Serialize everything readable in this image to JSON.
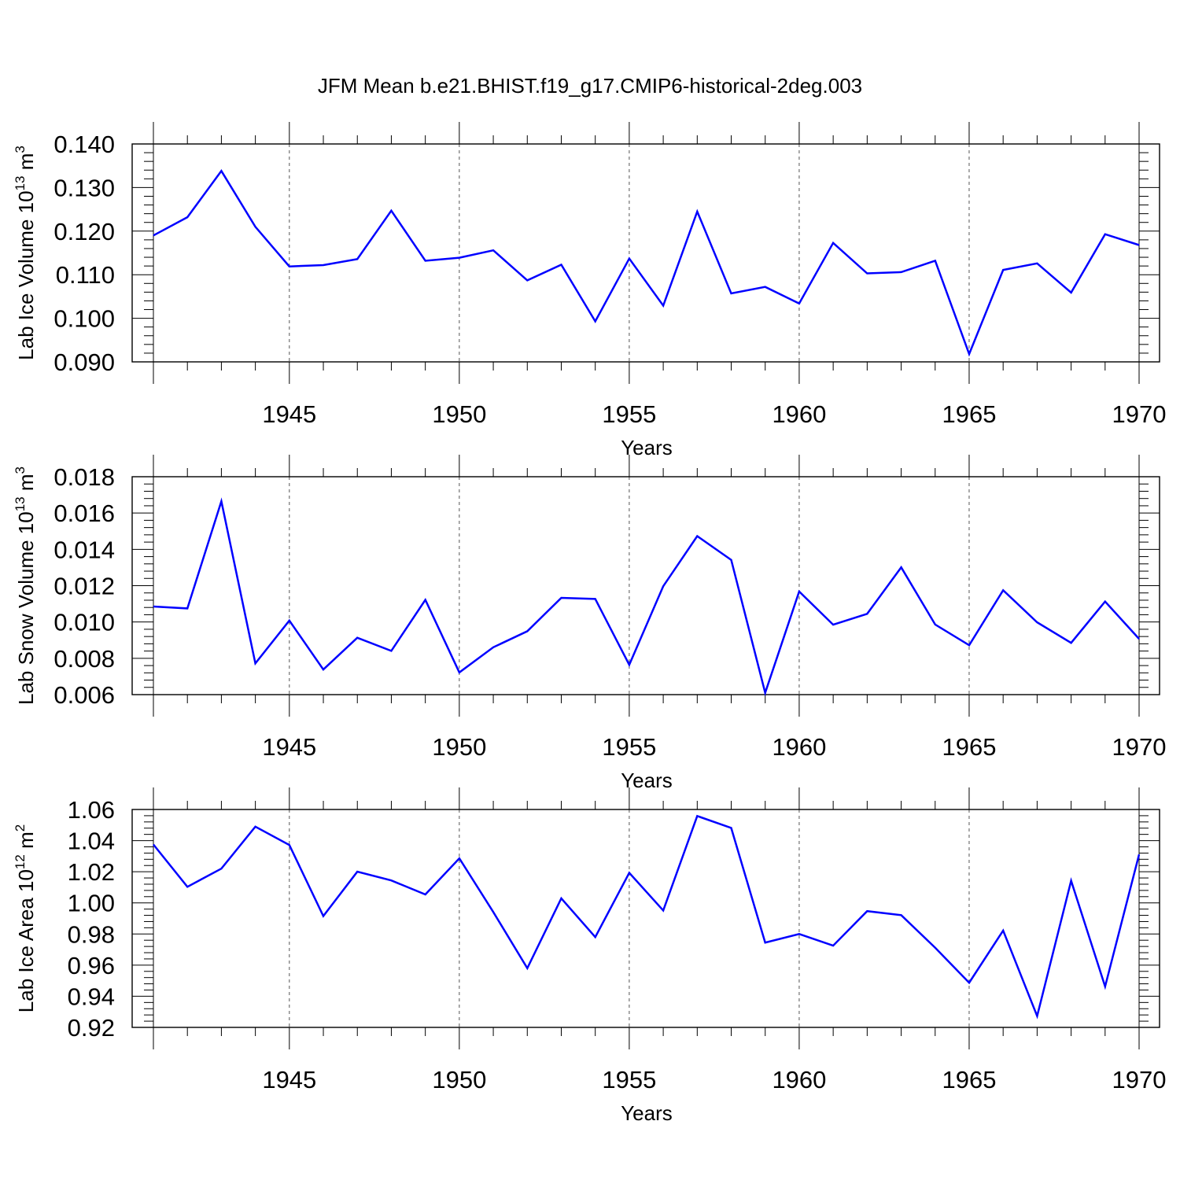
{
  "title": "JFM Mean b.e21.BHIST.f19_g17.CMIP6-historical-2deg.003",
  "colors": {
    "series": "#0000ff",
    "axes": "#000000"
  },
  "chart_data": [
    {
      "type": "line",
      "title": "",
      "xlabel": "Years",
      "ylabel": {
        "prefix": "Lab Ice Volume 10",
        "exp": "13",
        "unit": " m",
        "unit_exp": "3"
      },
      "xlim": [
        1941,
        1970
      ],
      "ylim": [
        0.09,
        0.14
      ],
      "yticks": [
        "0.090",
        "0.100",
        "0.110",
        "0.120",
        "0.130",
        "0.140"
      ],
      "xticks": [
        "1945",
        "1950",
        "1955",
        "1960",
        "1965",
        "1970"
      ],
      "grid": "vertical dashed at major x ticks",
      "x": [
        1941,
        1942,
        1943,
        1944,
        1945,
        1946,
        1947,
        1948,
        1949,
        1950,
        1951,
        1952,
        1953,
        1954,
        1955,
        1956,
        1957,
        1958,
        1959,
        1960,
        1961,
        1962,
        1963,
        1964,
        1965,
        1966,
        1967,
        1968,
        1969,
        1970
      ],
      "series": [
        {
          "values": [
            0.119,
            0.1232,
            0.1338,
            0.121,
            0.1119,
            0.1122,
            0.1136,
            0.1247,
            0.1132,
            0.1139,
            0.1156,
            0.1087,
            0.1123,
            0.0993,
            0.1137,
            0.1029,
            0.1245,
            0.1057,
            0.1072,
            0.1034,
            0.1173,
            0.1103,
            0.1106,
            0.1132,
            0.0918,
            0.1111,
            0.1126,
            0.1059,
            0.1193,
            0.1168
          ]
        }
      ]
    },
    {
      "type": "line",
      "title": "",
      "xlabel": "Years",
      "ylabel": {
        "prefix": "Lab Snow Volume 10",
        "exp": "13",
        "unit": " m",
        "unit_exp": "3"
      },
      "xlim": [
        1941,
        1970
      ],
      "ylim": [
        0.006,
        0.018
      ],
      "yticks": [
        "0.006",
        "0.008",
        "0.010",
        "0.012",
        "0.014",
        "0.016",
        "0.018"
      ],
      "xticks": [
        "1945",
        "1950",
        "1955",
        "1960",
        "1965",
        "1970"
      ],
      "grid": "vertical dashed at major x ticks",
      "x": [
        1941,
        1942,
        1943,
        1944,
        1945,
        1946,
        1947,
        1948,
        1949,
        1950,
        1951,
        1952,
        1953,
        1954,
        1955,
        1956,
        1957,
        1958,
        1959,
        1960,
        1961,
        1962,
        1963,
        1964,
        1965,
        1966,
        1967,
        1968,
        1969,
        1970
      ],
      "series": [
        {
          "values": [
            0.01085,
            0.01075,
            0.01665,
            0.00772,
            0.01008,
            0.00738,
            0.00913,
            0.00841,
            0.01122,
            0.00722,
            0.00861,
            0.00949,
            0.01133,
            0.01127,
            0.00764,
            0.01197,
            0.01473,
            0.01342,
            0.0061,
            0.01168,
            0.00985,
            0.01045,
            0.01301,
            0.00986,
            0.00872,
            0.01175,
            0.00998,
            0.00885,
            0.01113,
            0.00907
          ]
        }
      ]
    },
    {
      "type": "line",
      "title": "",
      "xlabel": "Years",
      "ylabel": {
        "prefix": "Lab Ice Area 10",
        "exp": "12",
        "unit": " m",
        "unit_exp": "2"
      },
      "xlim": [
        1941,
        1970
      ],
      "ylim": [
        0.92,
        1.06
      ],
      "yticks": [
        "0.92",
        "0.94",
        "0.96",
        "0.98",
        "1.00",
        "1.02",
        "1.04",
        "1.06"
      ],
      "xticks": [
        "1945",
        "1950",
        "1955",
        "1960",
        "1965",
        "1970"
      ],
      "grid": "vertical dashed at major x ticks",
      "x": [
        1941,
        1942,
        1943,
        1944,
        1945,
        1946,
        1947,
        1948,
        1949,
        1950,
        1951,
        1952,
        1953,
        1954,
        1955,
        1956,
        1957,
        1958,
        1959,
        1960,
        1961,
        1962,
        1963,
        1964,
        1965,
        1966,
        1967,
        1968,
        1969,
        1970
      ],
      "series": [
        {
          "values": [
            1.0375,
            1.0103,
            1.022,
            1.049,
            1.0372,
            0.9915,
            1.02,
            1.0144,
            1.0054,
            1.0286,
            0.9941,
            0.958,
            1.0029,
            0.978,
            1.0193,
            0.9951,
            1.0558,
            1.0481,
            0.9745,
            0.98,
            0.9725,
            0.9947,
            0.9921,
            0.9712,
            0.9487,
            0.9822,
            0.9273,
            1.0142,
            0.9463,
            1.0311
          ]
        }
      ]
    }
  ]
}
